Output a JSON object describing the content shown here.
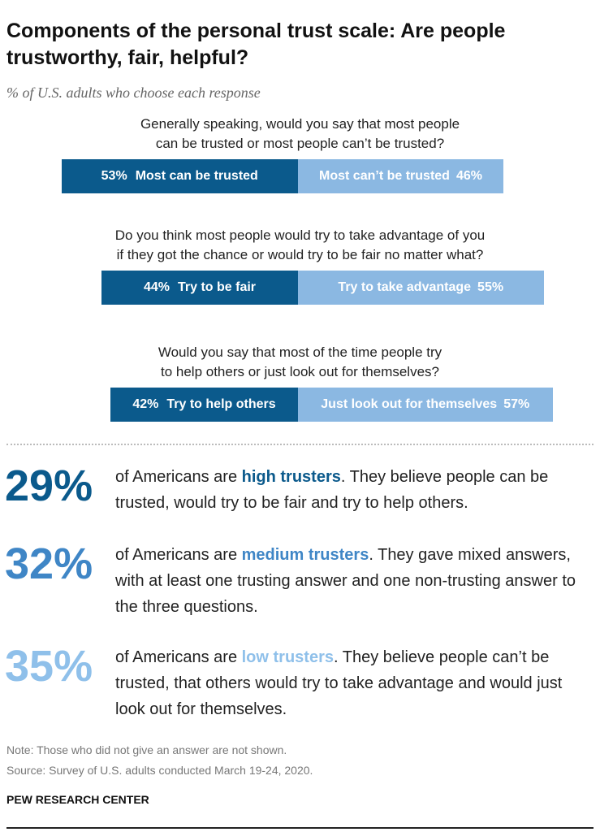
{
  "chart_data": {
    "type": "diverging_bar",
    "title": "Components of the personal trust scale: Are people trustworthy, fair, helpful?",
    "subtitle": "% of U.S. adults who choose each response",
    "xlim": [
      0,
      100
    ],
    "questions": [
      {
        "lines": [
          "Generally speaking, would you say that most people",
          "can be trusted or most people can’t be trusted?"
        ],
        "left": {
          "name": "Most can be trusted",
          "value": 53,
          "value_label": "53%",
          "color": "#0b5a8c"
        },
        "right": {
          "name": "Most can’t be trusted",
          "value": 46,
          "value_label": "46%",
          "color": "#8bb8e2"
        }
      },
      {
        "lines": [
          "Do you think most people would try to take advantage of you",
          "if they got the chance or would try to be fair no matter what?"
        ],
        "left": {
          "name": "Try to be fair",
          "value": 44,
          "value_label": "44%",
          "color": "#0b5a8c"
        },
        "right": {
          "name": "Try to take advantage",
          "value": 55,
          "value_label": "55%",
          "color": "#8bb8e2"
        }
      },
      {
        "lines": [
          "Would you say that most of the time people try",
          "to help others or just look out for themselves?"
        ],
        "left": {
          "name": "Try to help others",
          "value": 42,
          "value_label": "42%",
          "color": "#0b5a8c"
        },
        "right": {
          "name": "Just look out for themselves",
          "value": 57,
          "value_label": "57%",
          "color": "#8bb8e2"
        }
      }
    ],
    "groups": [
      {
        "share": "29%",
        "color": "#0b5a8c",
        "before": "of Americans are ",
        "term": "high trusters",
        "after": ". They believe people can be trusted, would try to be fair and try to help others."
      },
      {
        "share": "32%",
        "color": "#3f86c6",
        "before": "of Americans are ",
        "term": "medium trusters",
        "after": ". They gave mixed answers, with at least one trusting answer and one non-trusting answer to the three questions."
      },
      {
        "share": "35%",
        "color": "#8fc0ea",
        "before": "of Americans are ",
        "term": "low trusters",
        "after": ". They believe people can’t be trusted, that others would try to take advantage and would just look out for themselves."
      }
    ],
    "note": "Note: Those who did not give an answer are not shown.",
    "source": "Source: Survey of U.S. adults conducted March 19-24, 2020.",
    "brand": "PEW RESEARCH CENTER"
  }
}
